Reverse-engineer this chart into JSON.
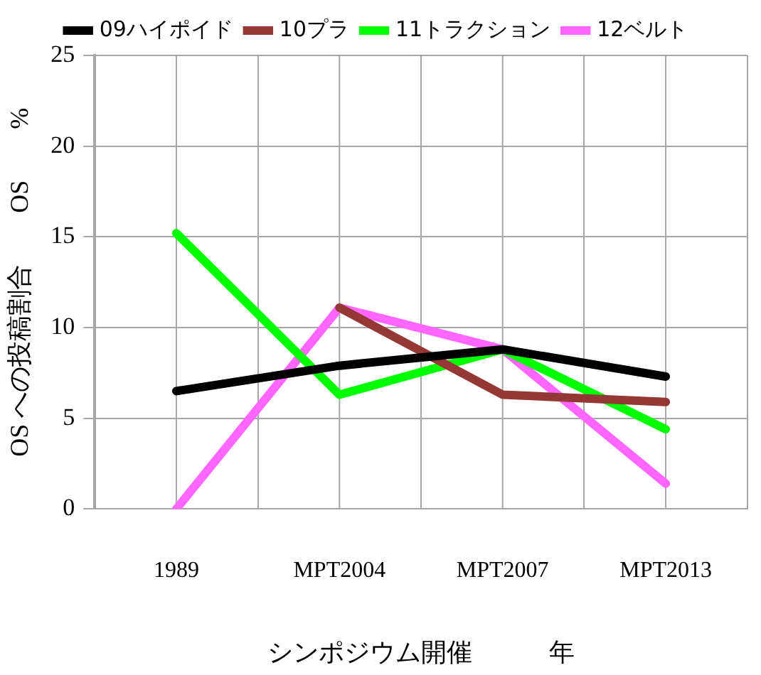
{
  "chart_data": {
    "type": "line",
    "xlabel": "シンポジウム開催　　　年",
    "ylabel": "OS への投稿割合　　OS　　%",
    "categories": [
      "1989",
      "MPT2004",
      "MPT2007",
      "MPT2013"
    ],
    "series": [
      {
        "name": "09ハイポイド",
        "color": "#000000",
        "values": [
          6.5,
          7.9,
          8.8,
          7.3
        ]
      },
      {
        "name": "10プラ",
        "color": "#953735",
        "values": [
          null,
          11.1,
          6.3,
          5.9
        ]
      },
      {
        "name": "11トラクション",
        "color": "#00ff00",
        "values": [
          15.2,
          6.3,
          8.8,
          4.4
        ]
      },
      {
        "name": "12ベルト",
        "color": "#ff66ff",
        "values": [
          0,
          11.1,
          8.8,
          1.4
        ]
      }
    ],
    "ylim": [
      0,
      25
    ],
    "yticks": [
      0,
      5,
      10,
      15,
      20,
      25
    ],
    "grid": true,
    "legend": "top",
    "marker": "none",
    "line_style": "solid"
  }
}
